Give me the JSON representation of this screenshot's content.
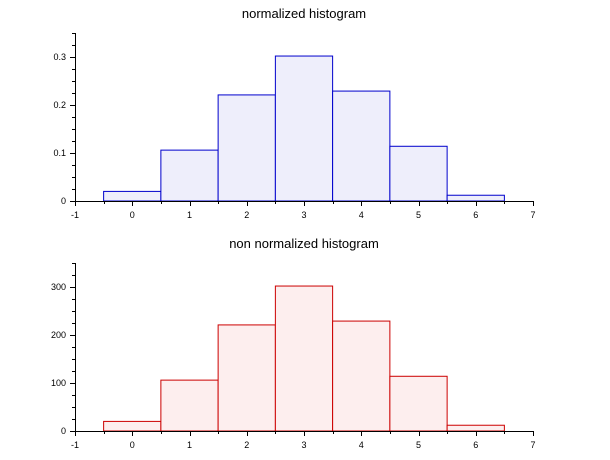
{
  "chart_data": [
    {
      "type": "bar",
      "title": "normalized histogram",
      "xlabel": "",
      "ylabel": "",
      "xlim": [
        -1,
        7
      ],
      "ylim": [
        0,
        0.35
      ],
      "x_ticks": [
        "-1",
        "0",
        "1",
        "2",
        "3",
        "4",
        "5",
        "6",
        "7"
      ],
      "y_ticks": [
        "0",
        "0.1",
        "0.2",
        "0.3"
      ],
      "bin_edges": [
        -0.5,
        0.5,
        1.5,
        2.5,
        3.5,
        4.5,
        5.5,
        6.5
      ],
      "values": [
        0.02,
        0.106,
        0.221,
        0.302,
        0.229,
        0.114,
        0.012
      ],
      "stroke_color": "#0000cc",
      "fill_color": "#eeeefb",
      "grid": false
    },
    {
      "type": "bar",
      "title": "non normalized histogram",
      "xlabel": "",
      "ylabel": "",
      "xlim": [
        -1,
        7
      ],
      "ylim": [
        0,
        350
      ],
      "x_ticks": [
        "-1",
        "0",
        "1",
        "2",
        "3",
        "4",
        "5",
        "6",
        "7"
      ],
      "y_ticks": [
        "0",
        "100",
        "200",
        "300"
      ],
      "bin_edges": [
        -0.5,
        0.5,
        1.5,
        2.5,
        3.5,
        4.5,
        5.5,
        6.5
      ],
      "values": [
        20,
        106,
        221,
        302,
        229,
        114,
        12
      ],
      "stroke_color": "#cc0000",
      "fill_color": "#fdeeee",
      "grid": false
    }
  ]
}
